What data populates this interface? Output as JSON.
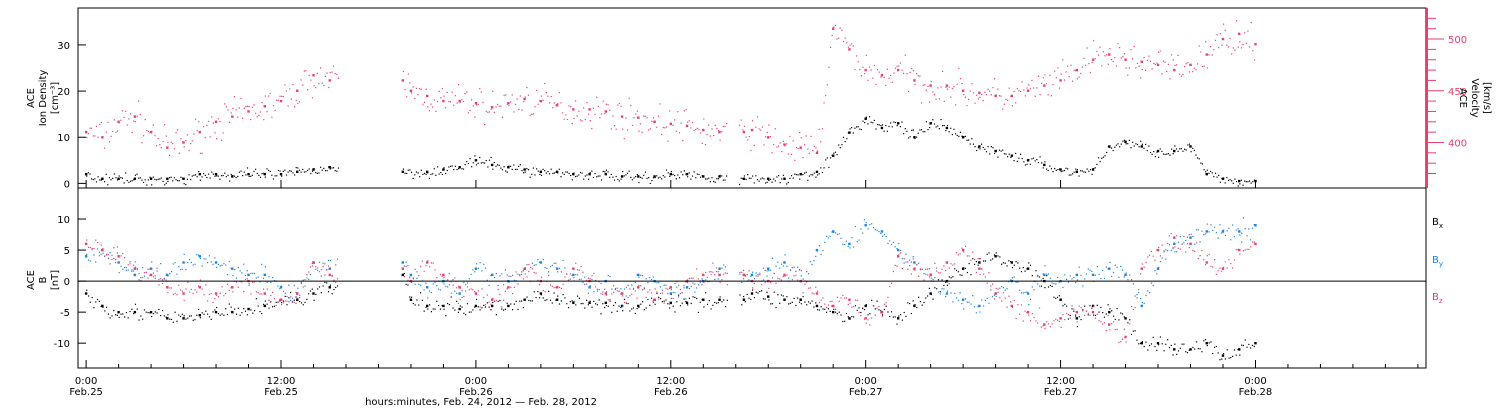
{
  "xaxis": {
    "title": "hours:minutes, Feb. 24, 2012 — Feb. 28, 2012",
    "range_hours": [
      -0.5,
      82.5
    ],
    "ticks": [
      {
        "h": 0,
        "time": "0:00",
        "date": "Feb.25"
      },
      {
        "h": 12,
        "time": "12:00",
        "date": "Feb.25"
      },
      {
        "h": 24,
        "time": "0:00",
        "date": "Feb.26"
      },
      {
        "h": 36,
        "time": "12:00",
        "date": "Feb.26"
      },
      {
        "h": 48,
        "time": "0:00",
        "date": "Feb.27"
      },
      {
        "h": 60,
        "time": "12:00",
        "date": "Feb.27"
      },
      {
        "h": 72,
        "time": "0:00",
        "date": "Feb.28"
      }
    ]
  },
  "panels": {
    "top": {
      "left_label": [
        "ACE",
        "Ion Density",
        "[cm⁻³]"
      ],
      "right_label": [
        "ACE",
        "Velocity",
        "[km/s]"
      ],
      "right_color": "#e8406e",
      "left_ticks": [
        "0",
        "10",
        "20",
        "30"
      ],
      "right_ticks": [
        "400",
        "450",
        "500"
      ]
    },
    "bottom": {
      "left_label": [
        "ACE",
        "B",
        "[nT]"
      ],
      "left_ticks": [
        "-10",
        "-5",
        "0",
        "5",
        "10"
      ],
      "legend": [
        {
          "label": "B",
          "sub": "x",
          "color": "#000000"
        },
        {
          "label": "B",
          "sub": "y",
          "color": "#1a84e0"
        },
        {
          "label": "B",
          "sub": "z",
          "color": "#e8406e"
        }
      ]
    }
  },
  "chart_data": [
    {
      "type": "scatter",
      "panel": "top",
      "xlabel": "hours:minutes, Feb. 24, 2012 — Feb. 28, 2012",
      "x_units": "hours since 0:00 Feb. 25, 2012",
      "data_gaps_hours": [
        [
          15.5,
          19.5
        ],
        [
          39.5,
          40.2
        ]
      ],
      "series": [
        {
          "axis": "left",
          "color": "#000000",
          "ylabel": "ACE Ion Density [cm⁻³]",
          "ylim": [
            -1,
            38
          ],
          "x": [
            0,
            1,
            2,
            3,
            4,
            5,
            6,
            7,
            8,
            9,
            10,
            11,
            12,
            13,
            14,
            15,
            19.5,
            21,
            22,
            23,
            24,
            25,
            26,
            27,
            28,
            29,
            30,
            31,
            32,
            33,
            34,
            35,
            36,
            37,
            38,
            39,
            40.5,
            42,
            43,
            44,
            45,
            46,
            47,
            48,
            49,
            50,
            51,
            52,
            53,
            54,
            55,
            56,
            57,
            58,
            59,
            60,
            61,
            62,
            63,
            64,
            65,
            66,
            67,
            68,
            69,
            70,
            71,
            72
          ],
          "y": [
            2,
            1,
            1,
            1,
            1,
            1,
            1,
            2,
            2,
            1.5,
            2,
            2,
            2,
            2.5,
            3,
            3.5,
            2.5,
            2.5,
            3,
            3.5,
            5,
            4,
            3.5,
            3,
            2.5,
            2.5,
            2,
            2,
            2,
            1.5,
            1.5,
            1.5,
            2,
            2,
            1.5,
            1.5,
            1,
            1,
            1,
            2,
            2.5,
            6,
            11,
            14,
            12,
            13,
            10,
            13,
            12,
            10,
            8,
            7,
            6,
            5,
            4,
            3,
            2.5,
            3,
            8,
            9,
            8,
            7,
            7,
            8,
            2,
            1,
            0.5,
            0.5
          ]
        },
        {
          "axis": "right",
          "color": "#e8406e",
          "ylabel": "ACE Velocity [km/s]",
          "ylim": [
            356,
            530
          ],
          "x": [
            0,
            1,
            2,
            3,
            4,
            5,
            6,
            7,
            8,
            9,
            10,
            11,
            12,
            13,
            14,
            15,
            19.5,
            20,
            21,
            22,
            23,
            24,
            25,
            26,
            27,
            28,
            29,
            30,
            31,
            32,
            33,
            34,
            35,
            36,
            37,
            38,
            39,
            40.5,
            41,
            42,
            43,
            44,
            45,
            46,
            47,
            48,
            49,
            50,
            51,
            52,
            53,
            54,
            55,
            56,
            57,
            58,
            59,
            60,
            61,
            62,
            63,
            64,
            65,
            66,
            67,
            68,
            69,
            70,
            71,
            72
          ],
          "y": [
            410,
            405,
            420,
            425,
            410,
            395,
            400,
            410,
            420,
            425,
            430,
            435,
            440,
            450,
            465,
            460,
            460,
            450,
            445,
            440,
            440,
            438,
            434,
            438,
            442,
            440,
            436,
            432,
            432,
            430,
            425,
            424,
            420,
            418,
            416,
            412,
            410,
            410,
            412,
            405,
            398,
            395,
            390,
            510,
            490,
            470,
            465,
            470,
            460,
            455,
            455,
            450,
            448,
            445,
            445,
            450,
            455,
            460,
            470,
            480,
            485,
            480,
            478,
            475,
            470,
            475,
            485,
            500,
            505,
            495
          ]
        }
      ]
    },
    {
      "type": "scatter",
      "panel": "bottom",
      "ylabel": "ACE B [nT]",
      "ylim": [
        -14,
        15
      ],
      "zero_line": true,
      "x_units": "hours since 0:00 Feb. 25, 2012",
      "data_gaps_hours": [
        [
          15.5,
          19.5
        ],
        [
          39.5,
          40.2
        ]
      ],
      "series": [
        {
          "name": "Bx",
          "color": "#000000",
          "x": [
            0,
            1,
            2,
            3,
            4,
            5,
            6,
            7,
            8,
            9,
            10,
            11,
            12,
            13,
            14,
            15,
            19.5,
            20,
            21,
            22,
            23,
            24,
            25,
            26,
            27,
            28,
            29,
            30,
            31,
            32,
            33,
            34,
            35,
            36,
            37,
            38,
            39,
            40.5,
            41,
            42,
            43,
            44,
            45,
            46,
            47,
            48,
            49,
            50,
            51,
            52,
            53,
            54,
            55,
            56,
            57,
            58,
            59,
            60,
            61,
            62,
            63,
            64,
            65,
            66,
            67,
            68,
            69,
            70,
            71,
            72
          ],
          "y": [
            -2,
            -4,
            -5,
            -5,
            -5,
            -6,
            -6,
            -5.5,
            -5,
            -5,
            -4.5,
            -4,
            -3,
            -3,
            -2,
            -1,
            1,
            -3,
            -4,
            -4,
            -4.5,
            -4,
            -4,
            -4,
            -3,
            -2,
            -3,
            -3.5,
            -3.5,
            -3.5,
            -4,
            -4,
            -3,
            -3.5,
            -3.5,
            -3,
            -3,
            -3,
            -2,
            -2.5,
            -3,
            -3,
            -4,
            -5,
            -6,
            -4,
            -5,
            -6,
            -4,
            -2,
            0,
            2,
            3,
            4,
            3,
            2,
            0,
            -3,
            -6,
            -4,
            -5,
            -6,
            -10,
            -10,
            -11,
            -11,
            -10,
            -12,
            -11,
            -10
          ]
        },
        {
          "name": "By",
          "color": "#1a84e0",
          "x": [
            0,
            1,
            2,
            3,
            4,
            5,
            6,
            7,
            8,
            9,
            10,
            11,
            12,
            13,
            14,
            15,
            19.5,
            20,
            21,
            22,
            23,
            24,
            25,
            26,
            27,
            28,
            29,
            30,
            31,
            32,
            33,
            34,
            35,
            36,
            37,
            38,
            39,
            40.5,
            41,
            42,
            43,
            44,
            45,
            46,
            47,
            48,
            49,
            50,
            51,
            52,
            53,
            54,
            55,
            56,
            57,
            58,
            59,
            60,
            61,
            62,
            63,
            64,
            65,
            66,
            67,
            68,
            69,
            70,
            71,
            72
          ],
          "y": [
            4,
            5,
            3,
            1,
            2,
            1,
            3,
            4,
            3,
            2,
            1,
            1,
            -1,
            -2,
            3,
            2,
            3,
            1,
            -1,
            0,
            -2,
            2,
            1,
            0,
            2,
            3,
            2,
            1,
            -1,
            0,
            -2,
            1,
            0,
            -2,
            -1,
            0,
            2,
            1,
            1,
            2,
            3,
            0,
            5,
            8,
            6,
            9,
            8,
            5,
            3,
            1,
            -2,
            -3,
            -4,
            -2,
            0,
            -2,
            1,
            0,
            1,
            1,
            2,
            1,
            -4,
            2,
            6,
            7,
            8,
            8,
            8,
            9
          ]
        },
        {
          "name": "Bz",
          "color": "#e8406e",
          "x": [
            0,
            1,
            2,
            3,
            4,
            5,
            6,
            7,
            8,
            9,
            10,
            11,
            12,
            13,
            14,
            15,
            19.5,
            20,
            21,
            22,
            23,
            24,
            25,
            26,
            27,
            28,
            29,
            30,
            31,
            32,
            33,
            34,
            35,
            36,
            37,
            38,
            39,
            40.5,
            41,
            42,
            43,
            44,
            45,
            46,
            47,
            48,
            49,
            50,
            51,
            52,
            53,
            54,
            55,
            56,
            57,
            58,
            59,
            60,
            61,
            62,
            63,
            64,
            65,
            66,
            67,
            68,
            69,
            70,
            71,
            72
          ],
          "y": [
            6,
            5,
            4,
            2,
            1,
            -1,
            -2,
            -1,
            -2,
            -1,
            0,
            -2,
            -3,
            -2,
            3,
            1,
            2,
            0,
            3,
            1,
            -1,
            -2,
            -3,
            -1,
            2,
            0,
            -1,
            2,
            0,
            -2,
            -2,
            -1,
            -3,
            -1,
            0,
            1,
            1,
            1,
            0,
            0,
            1,
            0,
            -2,
            -4,
            -3,
            -6,
            -5,
            4,
            2,
            1,
            3,
            5,
            2,
            -2,
            -4,
            -5,
            -7,
            -6,
            -5,
            -5,
            -7,
            -9,
            2,
            5,
            7,
            6,
            3,
            2,
            5,
            6
          ]
        }
      ]
    }
  ]
}
